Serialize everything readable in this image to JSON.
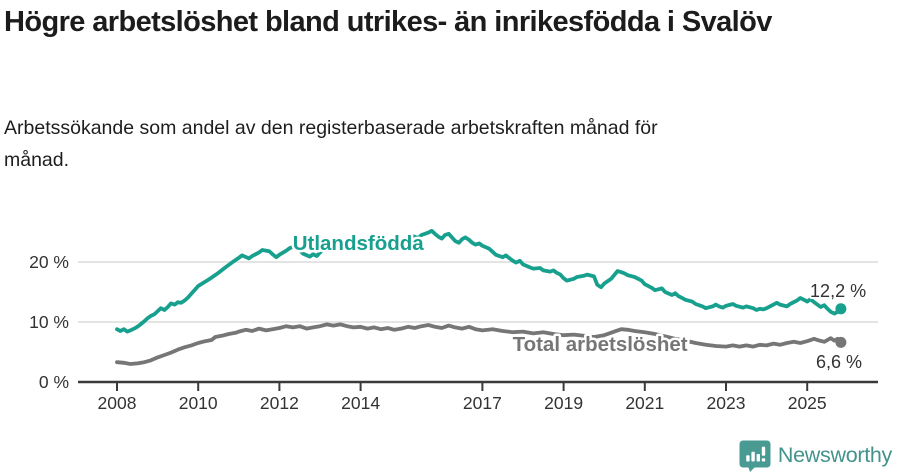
{
  "header": {
    "title": "Högre arbetslöshet bland utrikes- än inrikesfödda i Svalöv",
    "subtitle": "Arbetssökande som andel av den registerbaserade arbetskraften månad för månad."
  },
  "footer": {
    "brand": "Newsworthy",
    "brand_color": "#43938d",
    "logo_icon": "speech-bubble-with-bar-chart-and-exclamation",
    "logo_icon_color": "#4a9a94"
  },
  "chart_data": {
    "type": "line",
    "title": "Högre arbetslöshet bland utrikes- än inrikesfödda i Svalöv",
    "subtitle": "Arbetssökande som andel av den registerbaserade arbetskraften månad för månad.",
    "unit": "%",
    "xlim": [
      2007.05,
      2026.7
    ],
    "ylim": [
      0,
      26
    ],
    "grid": "horizontal-only",
    "legend_position": "inline-labels-on-lines",
    "style": {
      "grid_color": "#dcdcdc",
      "axis_color": "#3a3a3a",
      "text_color": "#333333",
      "background": "#ffffff"
    },
    "y_ticks": [
      {
        "value": 0,
        "label": "0 %"
      },
      {
        "value": 10,
        "label": "10 %"
      },
      {
        "value": 20,
        "label": "20 %"
      }
    ],
    "x_ticks": [
      {
        "year": 2008,
        "label": "2008"
      },
      {
        "year": 2010,
        "label": "2010"
      },
      {
        "year": 2012,
        "label": "2012"
      },
      {
        "year": 2014,
        "label": "2014"
      },
      {
        "year": 2017,
        "label": "2017"
      },
      {
        "year": 2019,
        "label": "2019"
      },
      {
        "year": 2021,
        "label": "2021"
      },
      {
        "year": 2023,
        "label": "2023"
      },
      {
        "year": 2025,
        "label": "2025"
      }
    ],
    "series": [
      {
        "id": "utlandsfodda",
        "name": "Utlandsfödda",
        "color": "#18a08e",
        "end_value_label": "12,2 %",
        "label": {
          "text": "Utlandsfödda",
          "x": 2013.94,
          "y": 22.0
        },
        "annotation": {
          "text": "12,2 %",
          "x": 2026.45,
          "y": 14.2
        },
        "points": [
          [
            2008.0,
            8.8
          ],
          [
            2008.08,
            8.5
          ],
          [
            2008.17,
            8.8
          ],
          [
            2008.25,
            8.4
          ],
          [
            2008.33,
            8.6
          ],
          [
            2008.42,
            8.9
          ],
          [
            2008.5,
            9.2
          ],
          [
            2008.58,
            9.6
          ],
          [
            2008.67,
            10.1
          ],
          [
            2008.75,
            10.6
          ],
          [
            2008.83,
            11.0
          ],
          [
            2008.92,
            11.3
          ],
          [
            2009.0,
            11.8
          ],
          [
            2009.08,
            12.3
          ],
          [
            2009.17,
            12.0
          ],
          [
            2009.25,
            12.5
          ],
          [
            2009.33,
            13.1
          ],
          [
            2009.42,
            12.9
          ],
          [
            2009.5,
            13.3
          ],
          [
            2009.58,
            13.2
          ],
          [
            2009.67,
            13.6
          ],
          [
            2009.75,
            14.1
          ],
          [
            2009.83,
            14.7
          ],
          [
            2009.92,
            15.4
          ],
          [
            2010.0,
            16.0
          ],
          [
            2010.17,
            16.7
          ],
          [
            2010.33,
            17.4
          ],
          [
            2010.5,
            18.2
          ],
          [
            2010.67,
            19.1
          ],
          [
            2010.83,
            19.9
          ],
          [
            2011.0,
            20.7
          ],
          [
            2011.08,
            21.1
          ],
          [
            2011.25,
            20.6
          ],
          [
            2011.33,
            21.0
          ],
          [
            2011.5,
            21.6
          ],
          [
            2011.58,
            22.0
          ],
          [
            2011.75,
            21.8
          ],
          [
            2011.83,
            21.3
          ],
          [
            2011.92,
            20.8
          ],
          [
            2012.0,
            21.2
          ],
          [
            2012.17,
            21.9
          ],
          [
            2012.25,
            22.3
          ],
          [
            2012.33,
            22.5
          ],
          [
            2012.5,
            22.0
          ],
          [
            2012.58,
            21.4
          ],
          [
            2012.75,
            20.9
          ],
          [
            2012.83,
            21.3
          ],
          [
            2012.92,
            21.0
          ],
          [
            2013.0,
            21.6
          ],
          [
            2013.17,
            22.4
          ],
          [
            2013.25,
            22.7
          ],
          [
            2013.42,
            22.4
          ],
          [
            2013.5,
            23.0
          ],
          [
            2013.67,
            23.3
          ],
          [
            2013.75,
            22.8
          ],
          [
            2013.83,
            22.2
          ],
          [
            2013.92,
            22.1
          ],
          [
            2014.0,
            22.5
          ],
          [
            2014.17,
            23.1
          ],
          [
            2014.25,
            23.5
          ],
          [
            2014.33,
            23.1
          ],
          [
            2014.5,
            22.8
          ],
          [
            2014.58,
            23.3
          ],
          [
            2014.75,
            23.8
          ],
          [
            2014.83,
            23.2
          ],
          [
            2014.92,
            23.0
          ],
          [
            2015.0,
            23.5
          ],
          [
            2015.17,
            24.1
          ],
          [
            2015.25,
            24.4
          ],
          [
            2015.42,
            24.0
          ],
          [
            2015.5,
            24.5
          ],
          [
            2015.67,
            24.9
          ],
          [
            2015.75,
            25.2
          ],
          [
            2015.83,
            24.7
          ],
          [
            2015.92,
            24.2
          ],
          [
            2016.0,
            23.9
          ],
          [
            2016.08,
            24.5
          ],
          [
            2016.17,
            24.7
          ],
          [
            2016.25,
            24.1
          ],
          [
            2016.33,
            23.5
          ],
          [
            2016.42,
            23.2
          ],
          [
            2016.5,
            23.8
          ],
          [
            2016.58,
            24.1
          ],
          [
            2016.67,
            23.7
          ],
          [
            2016.75,
            23.2
          ],
          [
            2016.83,
            22.9
          ],
          [
            2016.92,
            23.1
          ],
          [
            2017.0,
            22.7
          ],
          [
            2017.17,
            22.2
          ],
          [
            2017.25,
            21.7
          ],
          [
            2017.33,
            21.2
          ],
          [
            2017.5,
            20.8
          ],
          [
            2017.58,
            21.1
          ],
          [
            2017.67,
            20.6
          ],
          [
            2017.75,
            20.2
          ],
          [
            2017.83,
            19.9
          ],
          [
            2017.92,
            20.2
          ],
          [
            2018.0,
            19.6
          ],
          [
            2018.17,
            19.1
          ],
          [
            2018.25,
            18.9
          ],
          [
            2018.42,
            19.0
          ],
          [
            2018.5,
            18.6
          ],
          [
            2018.67,
            18.4
          ],
          [
            2018.75,
            18.6
          ],
          [
            2018.83,
            18.2
          ],
          [
            2018.92,
            17.9
          ],
          [
            2019.0,
            17.3
          ],
          [
            2019.08,
            16.9
          ],
          [
            2019.25,
            17.2
          ],
          [
            2019.33,
            17.5
          ],
          [
            2019.5,
            17.7
          ],
          [
            2019.58,
            17.9
          ],
          [
            2019.75,
            17.6
          ],
          [
            2019.83,
            16.2
          ],
          [
            2019.92,
            15.8
          ],
          [
            2020.0,
            16.4
          ],
          [
            2020.17,
            17.2
          ],
          [
            2020.33,
            18.5
          ],
          [
            2020.42,
            18.3
          ],
          [
            2020.5,
            18.1
          ],
          [
            2020.58,
            17.8
          ],
          [
            2020.75,
            17.5
          ],
          [
            2020.92,
            16.9
          ],
          [
            2021.0,
            16.3
          ],
          [
            2021.17,
            15.7
          ],
          [
            2021.25,
            15.3
          ],
          [
            2021.42,
            15.6
          ],
          [
            2021.5,
            15.0
          ],
          [
            2021.67,
            14.5
          ],
          [
            2021.75,
            14.8
          ],
          [
            2021.83,
            14.3
          ],
          [
            2021.92,
            14.0
          ],
          [
            2022.0,
            13.7
          ],
          [
            2022.17,
            13.4
          ],
          [
            2022.25,
            13.0
          ],
          [
            2022.42,
            12.6
          ],
          [
            2022.5,
            12.3
          ],
          [
            2022.67,
            12.6
          ],
          [
            2022.75,
            12.9
          ],
          [
            2022.83,
            12.6
          ],
          [
            2022.92,
            12.4
          ],
          [
            2023.0,
            12.7
          ],
          [
            2023.17,
            13.0
          ],
          [
            2023.25,
            12.7
          ],
          [
            2023.42,
            12.4
          ],
          [
            2023.5,
            12.6
          ],
          [
            2023.67,
            12.3
          ],
          [
            2023.75,
            12.0
          ],
          [
            2023.83,
            12.2
          ],
          [
            2023.92,
            12.1
          ],
          [
            2024.0,
            12.3
          ],
          [
            2024.17,
            12.9
          ],
          [
            2024.25,
            13.2
          ],
          [
            2024.33,
            12.9
          ],
          [
            2024.5,
            12.6
          ],
          [
            2024.58,
            13.0
          ],
          [
            2024.75,
            13.6
          ],
          [
            2024.83,
            14.0
          ],
          [
            2024.92,
            13.7
          ],
          [
            2025.0,
            13.4
          ],
          [
            2025.08,
            13.8
          ],
          [
            2025.17,
            13.3
          ],
          [
            2025.25,
            12.9
          ],
          [
            2025.33,
            12.5
          ],
          [
            2025.42,
            12.8
          ],
          [
            2025.5,
            12.2
          ],
          [
            2025.58,
            11.7
          ],
          [
            2025.67,
            11.4
          ],
          [
            2025.75,
            11.7
          ],
          [
            2025.83,
            12.2
          ]
        ]
      },
      {
        "id": "total",
        "name": "Total arbetslöshet",
        "color": "#767676",
        "end_value_label": "6,6 %",
        "label": {
          "text": "Total arbetslöshet",
          "x": 2019.9,
          "y": 5.2
        },
        "annotation": {
          "text": "6,6 %",
          "x": 2026.35,
          "y": 2.3
        },
        "points": [
          [
            2008.0,
            3.3
          ],
          [
            2008.17,
            3.2
          ],
          [
            2008.33,
            3.0
          ],
          [
            2008.5,
            3.1
          ],
          [
            2008.67,
            3.3
          ],
          [
            2008.83,
            3.6
          ],
          [
            2009.0,
            4.1
          ],
          [
            2009.17,
            4.5
          ],
          [
            2009.33,
            4.9
          ],
          [
            2009.5,
            5.4
          ],
          [
            2009.67,
            5.8
          ],
          [
            2009.83,
            6.1
          ],
          [
            2010.0,
            6.5
          ],
          [
            2010.17,
            6.8
          ],
          [
            2010.33,
            7.0
          ],
          [
            2010.42,
            7.5
          ],
          [
            2010.58,
            7.7
          ],
          [
            2010.75,
            8.0
          ],
          [
            2010.92,
            8.2
          ],
          [
            2011.0,
            8.4
          ],
          [
            2011.17,
            8.7
          ],
          [
            2011.33,
            8.5
          ],
          [
            2011.5,
            8.9
          ],
          [
            2011.67,
            8.6
          ],
          [
            2011.83,
            8.8
          ],
          [
            2012.0,
            9.0
          ],
          [
            2012.17,
            9.3
          ],
          [
            2012.33,
            9.1
          ],
          [
            2012.5,
            9.3
          ],
          [
            2012.67,
            8.9
          ],
          [
            2012.83,
            9.1
          ],
          [
            2013.0,
            9.3
          ],
          [
            2013.17,
            9.6
          ],
          [
            2013.33,
            9.4
          ],
          [
            2013.5,
            9.6
          ],
          [
            2013.67,
            9.3
          ],
          [
            2013.83,
            9.1
          ],
          [
            2014.0,
            9.2
          ],
          [
            2014.17,
            8.9
          ],
          [
            2014.33,
            9.1
          ],
          [
            2014.5,
            8.8
          ],
          [
            2014.67,
            9.0
          ],
          [
            2014.83,
            8.7
          ],
          [
            2015.0,
            8.9
          ],
          [
            2015.17,
            9.2
          ],
          [
            2015.33,
            9.0
          ],
          [
            2015.5,
            9.3
          ],
          [
            2015.67,
            9.5
          ],
          [
            2015.83,
            9.2
          ],
          [
            2016.0,
            9.0
          ],
          [
            2016.17,
            9.4
          ],
          [
            2016.33,
            9.1
          ],
          [
            2016.5,
            8.9
          ],
          [
            2016.67,
            9.2
          ],
          [
            2016.83,
            8.8
          ],
          [
            2017.0,
            8.6
          ],
          [
            2017.25,
            8.8
          ],
          [
            2017.5,
            8.5
          ],
          [
            2017.75,
            8.3
          ],
          [
            2018.0,
            8.4
          ],
          [
            2018.25,
            8.1
          ],
          [
            2018.5,
            8.3
          ],
          [
            2018.75,
            8.0
          ],
          [
            2019.0,
            7.8
          ],
          [
            2019.25,
            7.9
          ],
          [
            2019.5,
            7.7
          ],
          [
            2019.75,
            7.5
          ],
          [
            2020.0,
            7.8
          ],
          [
            2020.25,
            8.4
          ],
          [
            2020.42,
            8.8
          ],
          [
            2020.58,
            8.7
          ],
          [
            2020.75,
            8.5
          ],
          [
            2021.0,
            8.3
          ],
          [
            2021.25,
            8.0
          ],
          [
            2021.5,
            7.6
          ],
          [
            2021.75,
            7.2
          ],
          [
            2022.0,
            6.9
          ],
          [
            2022.25,
            6.5
          ],
          [
            2022.5,
            6.2
          ],
          [
            2022.75,
            6.0
          ],
          [
            2023.0,
            5.9
          ],
          [
            2023.17,
            6.1
          ],
          [
            2023.33,
            5.9
          ],
          [
            2023.5,
            6.1
          ],
          [
            2023.67,
            5.9
          ],
          [
            2023.83,
            6.2
          ],
          [
            2024.0,
            6.1
          ],
          [
            2024.17,
            6.4
          ],
          [
            2024.33,
            6.2
          ],
          [
            2024.5,
            6.5
          ],
          [
            2024.67,
            6.7
          ],
          [
            2024.83,
            6.5
          ],
          [
            2025.0,
            6.8
          ],
          [
            2025.17,
            7.2
          ],
          [
            2025.25,
            7.0
          ],
          [
            2025.42,
            6.7
          ],
          [
            2025.5,
            7.0
          ],
          [
            2025.58,
            7.3
          ],
          [
            2025.67,
            6.9
          ],
          [
            2025.75,
            7.2
          ],
          [
            2025.83,
            6.6
          ]
        ]
      }
    ]
  }
}
